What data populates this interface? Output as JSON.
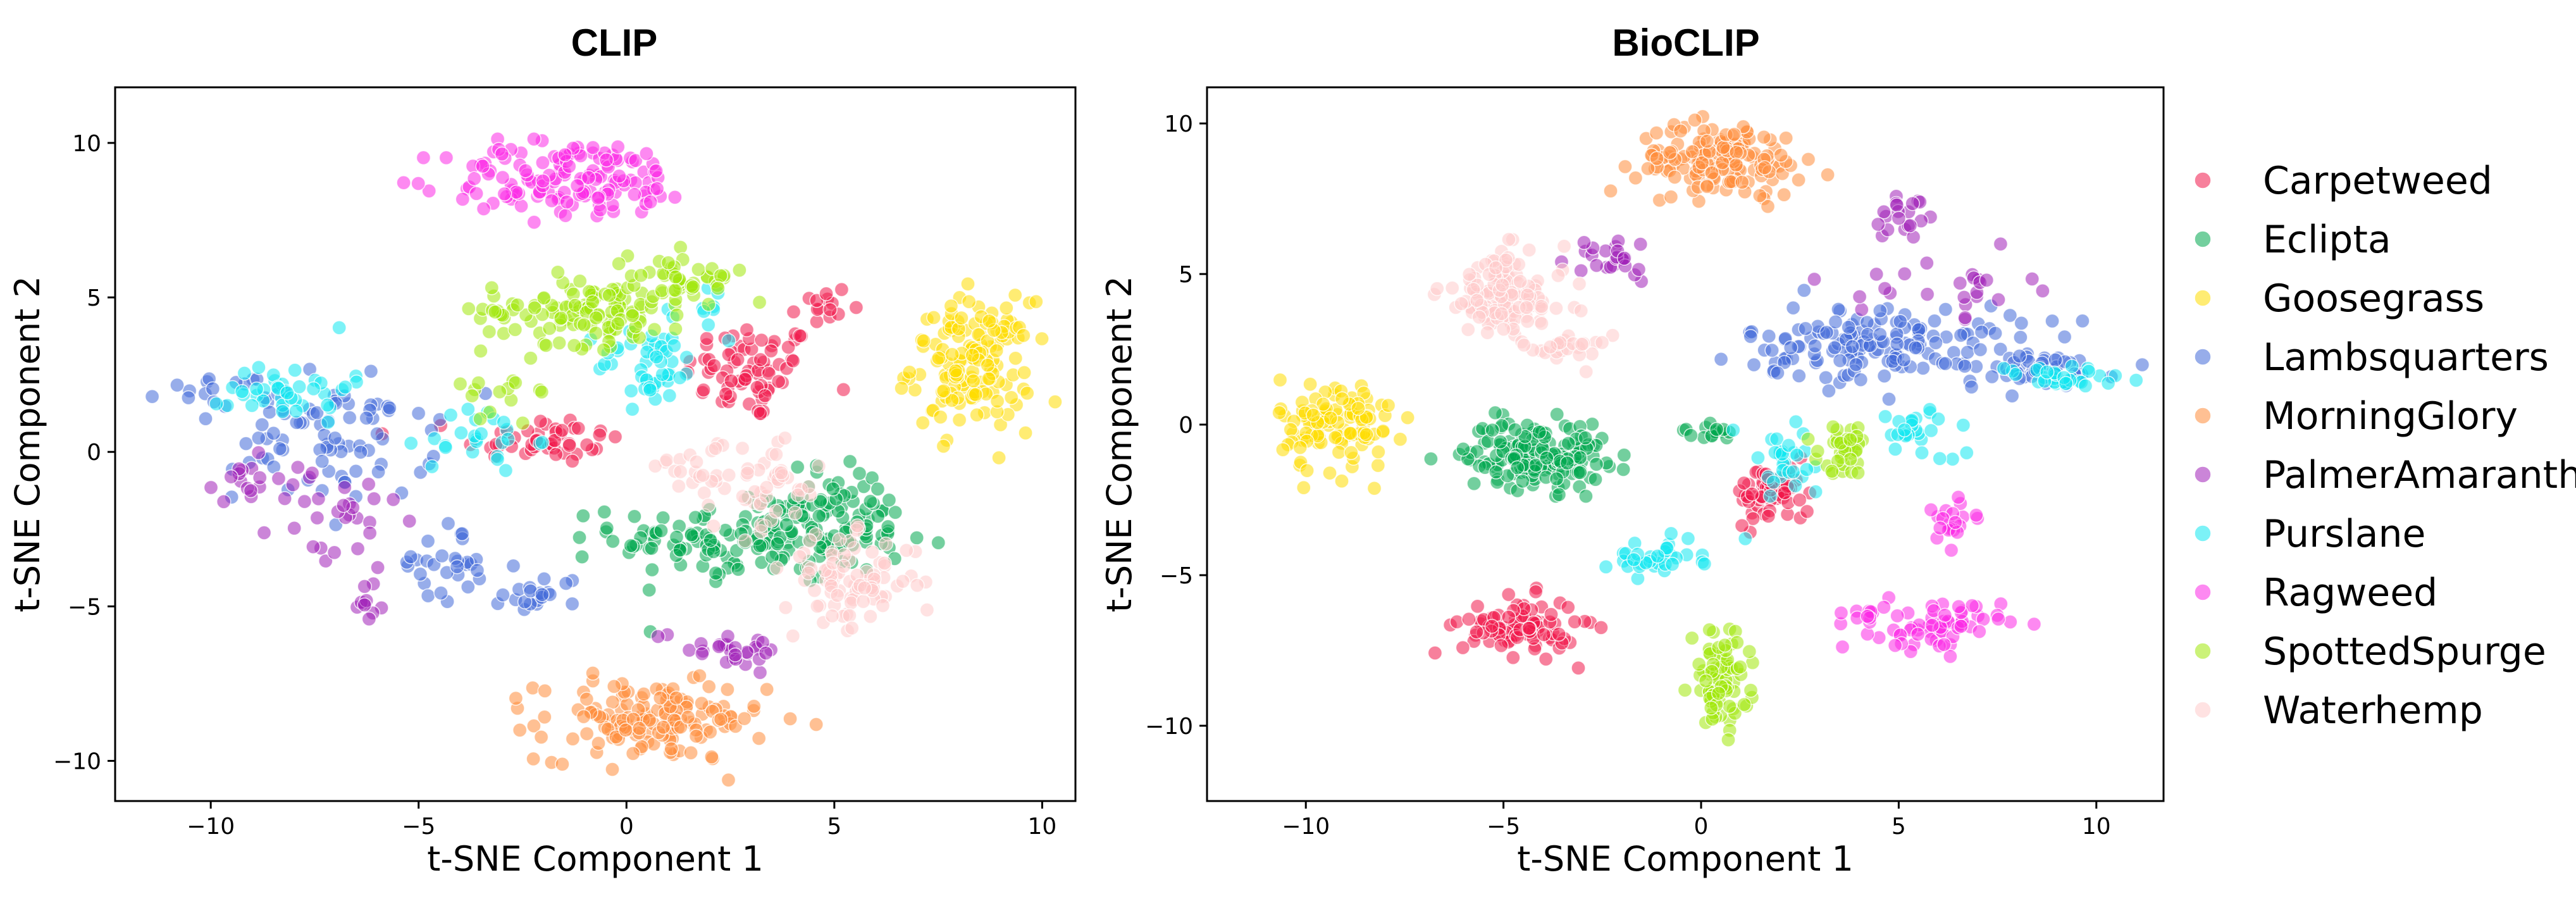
{
  "chart_data": [
    {
      "type": "scatter",
      "title": "CLIP",
      "xlabel": "t-SNE Component 1",
      "ylabel": "t-SNE Component 2",
      "xlim": [
        -12.3,
        10.8
      ],
      "ylim": [
        -11.3,
        11.8
      ],
      "xticks": [
        -10,
        -5,
        0,
        5,
        10
      ],
      "yticks": [
        -10,
        -5,
        0,
        5,
        10
      ],
      "xtick_labels": [
        "−10",
        "−5",
        "0",
        "5",
        "10"
      ],
      "ytick_labels": [
        "−10",
        "−5",
        "0",
        "5",
        "10"
      ],
      "series": [
        {
          "name": "Carpetweed",
          "clusters": [
            {
              "cx": 3.0,
              "cy": 2.6,
              "sx": 1.0,
              "sy": 1.0,
              "n": 70
            },
            {
              "cx": -2.0,
              "cy": 0.4,
              "sx": 1.2,
              "sy": 0.5,
              "n": 45
            },
            {
              "cx": 4.6,
              "cy": 4.6,
              "sx": 0.5,
              "sy": 0.6,
              "n": 15
            }
          ]
        },
        {
          "name": "Eclipta",
          "clusters": [
            {
              "cx": 3.3,
              "cy": -2.8,
              "sx": 2.2,
              "sy": 0.9,
              "n": 170
            },
            {
              "cx": 5.2,
              "cy": -1.6,
              "sx": 0.9,
              "sy": 0.8,
              "n": 40
            }
          ]
        },
        {
          "name": "Goosegrass",
          "clusters": [
            {
              "cx": 8.3,
              "cy": 2.8,
              "sx": 0.9,
              "sy": 1.3,
              "n": 150
            }
          ]
        },
        {
          "name": "Lambsquarters",
          "clusters": [
            {
              "cx": -7.0,
              "cy": 0.5,
              "sx": 1.5,
              "sy": 1.3,
              "n": 80
            },
            {
              "cx": -4.4,
              "cy": -3.6,
              "sx": 0.7,
              "sy": 0.8,
              "n": 30
            },
            {
              "cx": -2.0,
              "cy": -4.6,
              "sx": 0.6,
              "sy": 0.4,
              "n": 20
            },
            {
              "cx": -9.8,
              "cy": 2.0,
              "sx": 0.8,
              "sy": 0.3,
              "n": 15
            }
          ]
        },
        {
          "name": "MorningGlory",
          "clusters": [
            {
              "cx": 0.6,
              "cy": -8.7,
              "sx": 1.7,
              "sy": 0.8,
              "n": 150
            }
          ]
        },
        {
          "name": "PalmerAmaranth",
          "clusters": [
            {
              "cx": -9.3,
              "cy": -1.2,
              "sx": 0.6,
              "sy": 0.6,
              "n": 15
            },
            {
              "cx": -7.0,
              "cy": -2.2,
              "sx": 1.0,
              "sy": 1.2,
              "n": 30
            },
            {
              "cx": 2.4,
              "cy": -6.3,
              "sx": 1.1,
              "sy": 0.4,
              "n": 28
            },
            {
              "cx": -6.3,
              "cy": -5.0,
              "sx": 0.3,
              "sy": 0.5,
              "n": 10
            }
          ]
        },
        {
          "name": "Purslane",
          "clusters": [
            {
              "cx": -8.1,
              "cy": 2.1,
              "sx": 0.9,
              "sy": 0.7,
              "n": 40
            },
            {
              "cx": 0.6,
              "cy": 2.8,
              "sx": 0.8,
              "sy": 0.8,
              "n": 45
            },
            {
              "cx": -3.5,
              "cy": 0.4,
              "sx": 0.8,
              "sy": 0.7,
              "n": 25
            },
            {
              "cx": 2.0,
              "cy": 4.5,
              "sx": 0.4,
              "sy": 0.6,
              "n": 10
            }
          ]
        },
        {
          "name": "Ragweed",
          "clusters": [
            {
              "cx": -1.3,
              "cy": 8.8,
              "sx": 1.9,
              "sy": 0.8,
              "n": 140
            }
          ]
        },
        {
          "name": "SpottedSpurge",
          "clusters": [
            {
              "cx": -0.9,
              "cy": 4.6,
              "sx": 1.6,
              "sy": 0.7,
              "n": 120
            },
            {
              "cx": 1.5,
              "cy": 5.7,
              "sx": 0.9,
              "sy": 0.5,
              "n": 40
            },
            {
              "cx": -3.0,
              "cy": 2.0,
              "sx": 0.8,
              "sy": 0.5,
              "n": 15
            }
          ]
        },
        {
          "name": "Waterhemp",
          "clusters": [
            {
              "cx": 5.4,
              "cy": -4.2,
              "sx": 1.0,
              "sy": 0.9,
              "n": 90
            },
            {
              "cx": 3.2,
              "cy": -1.0,
              "sx": 1.0,
              "sy": 1.0,
              "n": 50
            },
            {
              "cx": 1.5,
              "cy": -0.4,
              "sx": 0.5,
              "sy": 0.5,
              "n": 15
            }
          ]
        }
      ]
    },
    {
      "type": "scatter",
      "title": "BioCLIP",
      "xlabel": "t-SNE Component 1",
      "ylabel": "t-SNE Component 2",
      "xlim": [
        -12.5,
        11.7
      ],
      "ylim": [
        -12.5,
        11.2
      ],
      "xticks": [
        -10,
        -5,
        0,
        5,
        10
      ],
      "yticks": [
        -10,
        -5,
        0,
        5,
        10
      ],
      "xtick_labels": [
        "−10",
        "−5",
        "0",
        "5",
        "10"
      ],
      "ytick_labels": [
        "−10",
        "−5",
        "0",
        "5",
        "10"
      ],
      "series": [
        {
          "name": "Carpetweed",
          "clusters": [
            {
              "cx": -4.6,
              "cy": -6.7,
              "sx": 0.9,
              "sy": 0.6,
              "n": 90
            },
            {
              "cx": 1.8,
              "cy": -2.3,
              "sx": 0.6,
              "sy": 0.6,
              "n": 60
            }
          ]
        },
        {
          "name": "Eclipta",
          "clusters": [
            {
              "cx": -4.2,
              "cy": -1.0,
              "sx": 1.1,
              "sy": 0.7,
              "n": 170
            },
            {
              "cx": 0.2,
              "cy": -0.3,
              "sx": 0.4,
              "sy": 0.15,
              "n": 15
            }
          ]
        },
        {
          "name": "Goosegrass",
          "clusters": [
            {
              "cx": -9.2,
              "cy": 0.0,
              "sx": 0.9,
              "sy": 1.0,
              "n": 110
            }
          ]
        },
        {
          "name": "Lambsquarters",
          "clusters": [
            {
              "cx": 4.6,
              "cy": 2.7,
              "sx": 2.2,
              "sy": 0.8,
              "n": 150
            },
            {
              "cx": 8.5,
              "cy": 1.8,
              "sx": 1.2,
              "sy": 0.4,
              "n": 40
            }
          ]
        },
        {
          "name": "MorningGlory",
          "clusters": [
            {
              "cx": 0.5,
              "cy": 8.8,
              "sx": 1.3,
              "sy": 0.75,
              "n": 150
            }
          ]
        },
        {
          "name": "PalmerAmaranth",
          "clusters": [
            {
              "cx": -2.3,
              "cy": 5.5,
              "sx": 0.9,
              "sy": 0.5,
              "n": 25
            },
            {
              "cx": 5.2,
              "cy": 7.0,
              "sx": 0.5,
              "sy": 0.6,
              "n": 20
            },
            {
              "cx": 6.2,
              "cy": 4.6,
              "sx": 1.3,
              "sy": 0.6,
              "n": 25
            }
          ]
        },
        {
          "name": "Purslane",
          "clusters": [
            {
              "cx": -1.2,
              "cy": -4.4,
              "sx": 0.8,
              "sy": 0.35,
              "n": 35
            },
            {
              "cx": 9.0,
              "cy": 1.5,
              "sx": 1.1,
              "sy": 0.3,
              "n": 30
            },
            {
              "cx": 2.2,
              "cy": -1.2,
              "sx": 0.8,
              "sy": 0.8,
              "n": 30
            },
            {
              "cx": 5.5,
              "cy": -0.3,
              "sx": 0.6,
              "sy": 0.6,
              "n": 25
            }
          ]
        },
        {
          "name": "Ragweed",
          "clusters": [
            {
              "cx": 6.0,
              "cy": -6.7,
              "sx": 1.0,
              "sy": 0.5,
              "n": 60
            },
            {
              "cx": 6.3,
              "cy": -3.2,
              "sx": 0.5,
              "sy": 0.5,
              "n": 20
            },
            {
              "cx": 4.2,
              "cy": -6.3,
              "sx": 0.6,
              "sy": 0.2,
              "n": 10
            }
          ]
        },
        {
          "name": "SpottedSpurge",
          "clusters": [
            {
              "cx": 0.5,
              "cy": -8.5,
              "sx": 0.45,
              "sy": 1.0,
              "n": 80
            },
            {
              "cx": 3.7,
              "cy": -0.8,
              "sx": 0.45,
              "sy": 0.5,
              "n": 35
            }
          ]
        },
        {
          "name": "Waterhemp",
          "clusters": [
            {
              "cx": -5.0,
              "cy": 4.3,
              "sx": 1.0,
              "sy": 0.9,
              "n": 130
            },
            {
              "cx": -3.4,
              "cy": 2.5,
              "sx": 0.7,
              "sy": 0.3,
              "n": 25
            }
          ]
        }
      ]
    }
  ],
  "legend": {
    "position": "right",
    "items": [
      {
        "name": "Carpetweed",
        "color": "#f0184a"
      },
      {
        "name": "Eclipta",
        "color": "#00a84f"
      },
      {
        "name": "Goosegrass",
        "color": "#ffdc00"
      },
      {
        "name": "Lambsquarters",
        "color": "#4169d8"
      },
      {
        "name": "MorningGlory",
        "color": "#ff8c3a"
      },
      {
        "name": "PalmerAmaranth",
        "color": "#a020b8"
      },
      {
        "name": "Purslane",
        "color": "#10e8f0"
      },
      {
        "name": "Ragweed",
        "color": "#fc28e6"
      },
      {
        "name": "SpottedSpurge",
        "color": "#a0e80a"
      },
      {
        "name": "Waterhemp",
        "color": "#ffcaca"
      }
    ]
  },
  "marker": {
    "alpha": 0.55,
    "edge_color": "#ffffff"
  }
}
